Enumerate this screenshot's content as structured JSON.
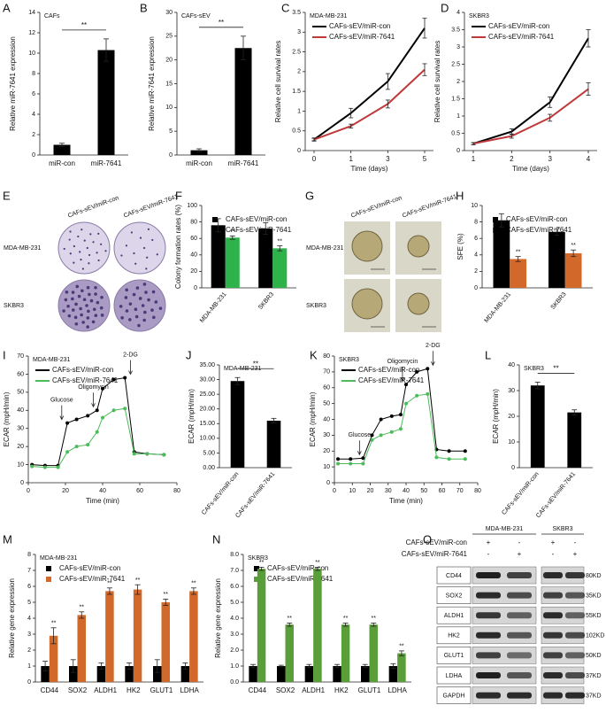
{
  "chart_data": [
    {
      "panel": "A",
      "type": "bar",
      "title": "CAFs",
      "ylabel": "Relative miR-7641 expression",
      "categories": [
        "miR-con",
        "miR-7641"
      ],
      "values": [
        1,
        10.3
      ],
      "errors": [
        0.15,
        1.1
      ],
      "color": "#000000",
      "ylim": [
        0,
        14
      ],
      "yticks": [
        0,
        2,
        4,
        6,
        8,
        10,
        12,
        14
      ],
      "significance": "**"
    },
    {
      "panel": "B",
      "type": "bar",
      "title": "CAFs-sEV",
      "ylabel": "Relative miR-7641 expression",
      "categories": [
        "miR-con",
        "miR-7641"
      ],
      "values": [
        1,
        22.5
      ],
      "errors": [
        0.3,
        2.5
      ],
      "color": "#000000",
      "ylim": [
        0,
        30
      ],
      "yticks": [
        0,
        5,
        10,
        15,
        20,
        25,
        30
      ],
      "significance": "**"
    },
    {
      "panel": "C",
      "type": "line",
      "title": "MDA-MB-231",
      "ylabel": "Relative cell survival rates",
      "xlabel": "Time  (days)",
      "categories": [
        "0",
        "1",
        "3",
        "5"
      ],
      "ylim": [
        0,
        3.5
      ],
      "yticks": [
        0,
        0.5,
        1,
        1.5,
        2,
        2.5,
        3,
        3.5
      ],
      "series": [
        {
          "name": "CAFs-sEV/miR-con",
          "color": "#000000",
          "values": [
            0.28,
            0.95,
            1.75,
            3.1
          ],
          "errors": [
            0.04,
            0.12,
            0.2,
            0.25
          ]
        },
        {
          "name": "CAFs-sEV/miR-7641",
          "color": "#c0393b",
          "values": [
            0.28,
            0.62,
            1.18,
            2.05
          ],
          "errors": [
            0.03,
            0.05,
            0.1,
            0.15
          ]
        }
      ]
    },
    {
      "panel": "D",
      "type": "line",
      "title": "SKBR3",
      "ylabel": "Relative cell survival rates",
      "xlabel": "Time (days)",
      "categories": [
        "1",
        "2",
        "3",
        "4"
      ],
      "ylim": [
        0,
        4
      ],
      "yticks": [
        0,
        0.5,
        1,
        1.5,
        2,
        2.5,
        3,
        3.5,
        4
      ],
      "series": [
        {
          "name": "CAFs-sEV/miR-con",
          "color": "#000000",
          "values": [
            0.2,
            0.55,
            1.4,
            3.25
          ],
          "errors": [
            0.03,
            0.08,
            0.15,
            0.25
          ]
        },
        {
          "name": "CAFs-sEV/miR-7641",
          "color": "#c0393b",
          "values": [
            0.2,
            0.42,
            0.95,
            1.78
          ],
          "errors": [
            0.03,
            0.06,
            0.1,
            0.18
          ]
        }
      ]
    },
    {
      "panel": "F",
      "type": "bar",
      "ylabel": "Colony formation rates (%)",
      "categories": [
        "MDA-MB-231",
        "SKBR3"
      ],
      "ylim": [
        0,
        100
      ],
      "yticks": [
        0,
        20,
        40,
        60,
        80,
        100
      ],
      "significance": "**",
      "series": [
        {
          "name": "CAFs-sEV/miR-con",
          "color": "#000000",
          "values": [
            76,
            72
          ],
          "errors": [
            8,
            7
          ]
        },
        {
          "name": "CAFs-sEV/miR-7641",
          "color": "#2db34a",
          "values": [
            61,
            48
          ],
          "errors": [
            2,
            3
          ]
        }
      ]
    },
    {
      "panel": "H",
      "type": "bar",
      "ylabel": "SFE (%)",
      "categories": [
        "MDA-MB-231",
        "SKBR3"
      ],
      "ylim": [
        0,
        10
      ],
      "yticks": [
        0,
        2,
        4,
        6,
        8,
        10
      ],
      "significance": "**",
      "series": [
        {
          "name": "CAFs-sEV/miR-con",
          "color": "#000000",
          "values": [
            8.2,
            6.8
          ],
          "errors": [
            0.8,
            0.4
          ]
        },
        {
          "name": "CAFs-sEV/miR-7641",
          "color": "#d2692a",
          "values": [
            3.5,
            4.2
          ],
          "errors": [
            0.3,
            0.4
          ]
        }
      ]
    },
    {
      "panel": "I",
      "type": "line",
      "title": "MDA-MB-231",
      "ylabel": "ECAR (mpH/min)",
      "xlabel": "Time (min)",
      "x": [
        2,
        9,
        16,
        21,
        26,
        32,
        37,
        40,
        46,
        52,
        57,
        64,
        73
      ],
      "xlim": [
        0,
        80
      ],
      "xticks": [
        0,
        20,
        40,
        60,
        80
      ],
      "ylim": [
        0,
        70
      ],
      "yticks": [
        0,
        10,
        20,
        30,
        40,
        50,
        60,
        70
      ],
      "series": [
        {
          "name": "CAFs-sEV/miR-con",
          "color": "#000000",
          "values": [
            10,
            9.5,
            9.5,
            33,
            35,
            37,
            40,
            52,
            57,
            58,
            17,
            16,
            15.5
          ]
        },
        {
          "name": "CAFs-sEV/miR-7641",
          "color": "#4cbb5a",
          "values": [
            9,
            8.5,
            8.5,
            17,
            20,
            21,
            28,
            36,
            40,
            41,
            16,
            16,
            15.5
          ]
        }
      ],
      "annotations": [
        {
          "text": "Glucose",
          "x": 18
        },
        {
          "text": "Oligomycin",
          "x": 35
        },
        {
          "text": "2-DG",
          "x": 55
        }
      ]
    },
    {
      "panel": "J",
      "type": "bar",
      "title": "MDA-MB-231",
      "ylabel": "ECAR (mpH/min)",
      "categories": [
        "CAFs-sEV/miR-con",
        "CAFs-sEV/miR-7641"
      ],
      "values": [
        29.5,
        16
      ],
      "errors": [
        1.2,
        0.8
      ],
      "color": "#000000",
      "ylim": [
        0,
        35
      ],
      "yticks": [
        {
          "value": 0,
          "label": "0.00"
        },
        {
          "value": 5,
          "label": "5.00"
        },
        {
          "value": 10,
          "label": "10.00"
        },
        {
          "value": 15,
          "label": "15.00"
        },
        {
          "value": 20,
          "label": "20.00"
        },
        {
          "value": 25,
          "label": "25.00"
        },
        {
          "value": 30,
          "label": "30.00"
        },
        {
          "value": 35,
          "label": "35.00"
        }
      ],
      "significance": "**"
    },
    {
      "panel": "K",
      "type": "line",
      "title": "SKBR3",
      "ylabel": "ECAR (mpH/min)",
      "xlabel": "Time (min)",
      "x": [
        2,
        9,
        16,
        21,
        26,
        32,
        37,
        40,
        46,
        52,
        57,
        64,
        73
      ],
      "xlim": [
        0,
        80
      ],
      "xticks": [
        0,
        10,
        20,
        30,
        40,
        50,
        60,
        70,
        80
      ],
      "ylim": [
        0,
        80
      ],
      "yticks": [
        0,
        10,
        20,
        30,
        40,
        50,
        60,
        70,
        80
      ],
      "series": [
        {
          "name": "CAFs-sEV/miR-con",
          "color": "#000000",
          "values": [
            15,
            15,
            15.5,
            30,
            40,
            42,
            43,
            62,
            70,
            72,
            21,
            20,
            20
          ]
        },
        {
          "name": "CAFs-sEV/miR-7641",
          "color": "#4cbb5a",
          "values": [
            12,
            12,
            12,
            27,
            30,
            32,
            34,
            50,
            55,
            56,
            16,
            15,
            15
          ]
        }
      ],
      "annotations": [
        {
          "text": "Glucose",
          "x": 14
        },
        {
          "text": "Oligomycin",
          "x": 38
        },
        {
          "text": "2-DG",
          "x": 55
        }
      ]
    },
    {
      "panel": "L",
      "type": "bar",
      "title": "SKBR3",
      "ylabel": "ECAR (mpH/min)",
      "categories": [
        "CAFs-sEV/miR-con",
        "CAFs-sEV/miR-7641"
      ],
      "values": [
        32,
        21.5
      ],
      "errors": [
        1.3,
        1
      ],
      "color": "#000000",
      "ylim": [
        0,
        40
      ],
      "yticks": [
        0,
        10,
        20,
        30,
        40
      ],
      "significance": "**"
    },
    {
      "panel": "M",
      "type": "bar",
      "title": "MDA-MB-231",
      "ylabel": "Relative gene expression",
      "categories": [
        "CD44",
        "SOX2",
        "ALDH1",
        "HK2",
        "GLUT1",
        "LDHA"
      ],
      "ylim": [
        0,
        8
      ],
      "yticks": [
        0,
        1,
        2,
        3,
        4,
        5,
        6,
        7,
        8
      ],
      "significance": "**",
      "series": [
        {
          "name": "CAFs-sEV/miR-con",
          "color": "#000000",
          "values": [
            1,
            1,
            1,
            1,
            1,
            1
          ],
          "errors": [
            0.3,
            0.4,
            0.2,
            0.2,
            0.4,
            0.2
          ]
        },
        {
          "name": "CAFs-sEV/miR-7641",
          "color": "#d2692a",
          "values": [
            2.9,
            4.2,
            5.7,
            5.8,
            5.0,
            5.7
          ],
          "errors": [
            0.5,
            0.2,
            0.2,
            0.3,
            0.2,
            0.2
          ]
        }
      ]
    },
    {
      "panel": "N",
      "type": "bar",
      "title": "SKBR3",
      "ylabel": "Relative gene expression",
      "categories": [
        "CD44",
        "SOX2",
        "ALDH1",
        "HK2",
        "GLUT1",
        "LDHA"
      ],
      "ylim": [
        0,
        8
      ],
      "yticks": [
        {
          "value": 0,
          "label": "0.0"
        },
        {
          "value": 1,
          "label": "1.0"
        },
        {
          "value": 2,
          "label": "2.0"
        },
        {
          "value": 3,
          "label": "3.0"
        },
        {
          "value": 4,
          "label": "4.0"
        },
        {
          "value": 5,
          "label": "5.0"
        },
        {
          "value": 6,
          "label": "6.0"
        },
        {
          "value": 7,
          "label": "7.0"
        },
        {
          "value": 8,
          "label": "8.0"
        }
      ],
      "significance": "**",
      "series": [
        {
          "name": "CAFs-sEV/miR-con",
          "color": "#000000",
          "values": [
            1,
            1,
            1,
            1,
            1,
            1
          ],
          "errors": [
            0.1,
            0.05,
            0.1,
            0.1,
            0.1,
            0.15
          ]
        },
        {
          "name": "CAFs-sEV/miR-7641",
          "color": "#5a9e3a",
          "values": [
            7.1,
            3.6,
            7.1,
            3.6,
            3.6,
            1.8
          ],
          "errors": [
            0.1,
            0.1,
            0.1,
            0.1,
            0.1,
            0.15
          ]
        }
      ]
    }
  ],
  "image_panels": [
    {
      "panel": "E",
      "columns": [
        "CAFs-sEV/miR-con",
        "CAFs-sEV/miR-7641"
      ],
      "rows": [
        "MDA-MB-231",
        "SKBR3"
      ]
    },
    {
      "panel": "G",
      "columns": [
        "CAFs-sEV/miR-con",
        "CAFs-sEV/miR-7641"
      ],
      "rows": [
        "MDA-MB-231",
        "SKBR3"
      ]
    }
  ],
  "blot": {
    "panel": "O",
    "groups": [
      "MDA-MB-231",
      "SKBR3"
    ],
    "conditions": [
      {
        "name": "CAFs-sEV/miR-con",
        "signs": [
          "+",
          "-",
          "+",
          "-"
        ]
      },
      {
        "name": "CAFs-sEV/miR-7641",
        "signs": [
          "-",
          "+",
          "-",
          "+"
        ]
      }
    ],
    "proteins": [
      {
        "name": "CD44",
        "size": "80KD"
      },
      {
        "name": "SOX2",
        "size": "35KD"
      },
      {
        "name": "ALDH1",
        "size": "55KD"
      },
      {
        "name": "HK2",
        "size": "102KD"
      },
      {
        "name": "GLUT1",
        "size": "50KD"
      },
      {
        "name": "LDHA",
        "size": "37KD"
      },
      {
        "name": "GAPDH",
        "size": "37KD"
      }
    ]
  }
}
